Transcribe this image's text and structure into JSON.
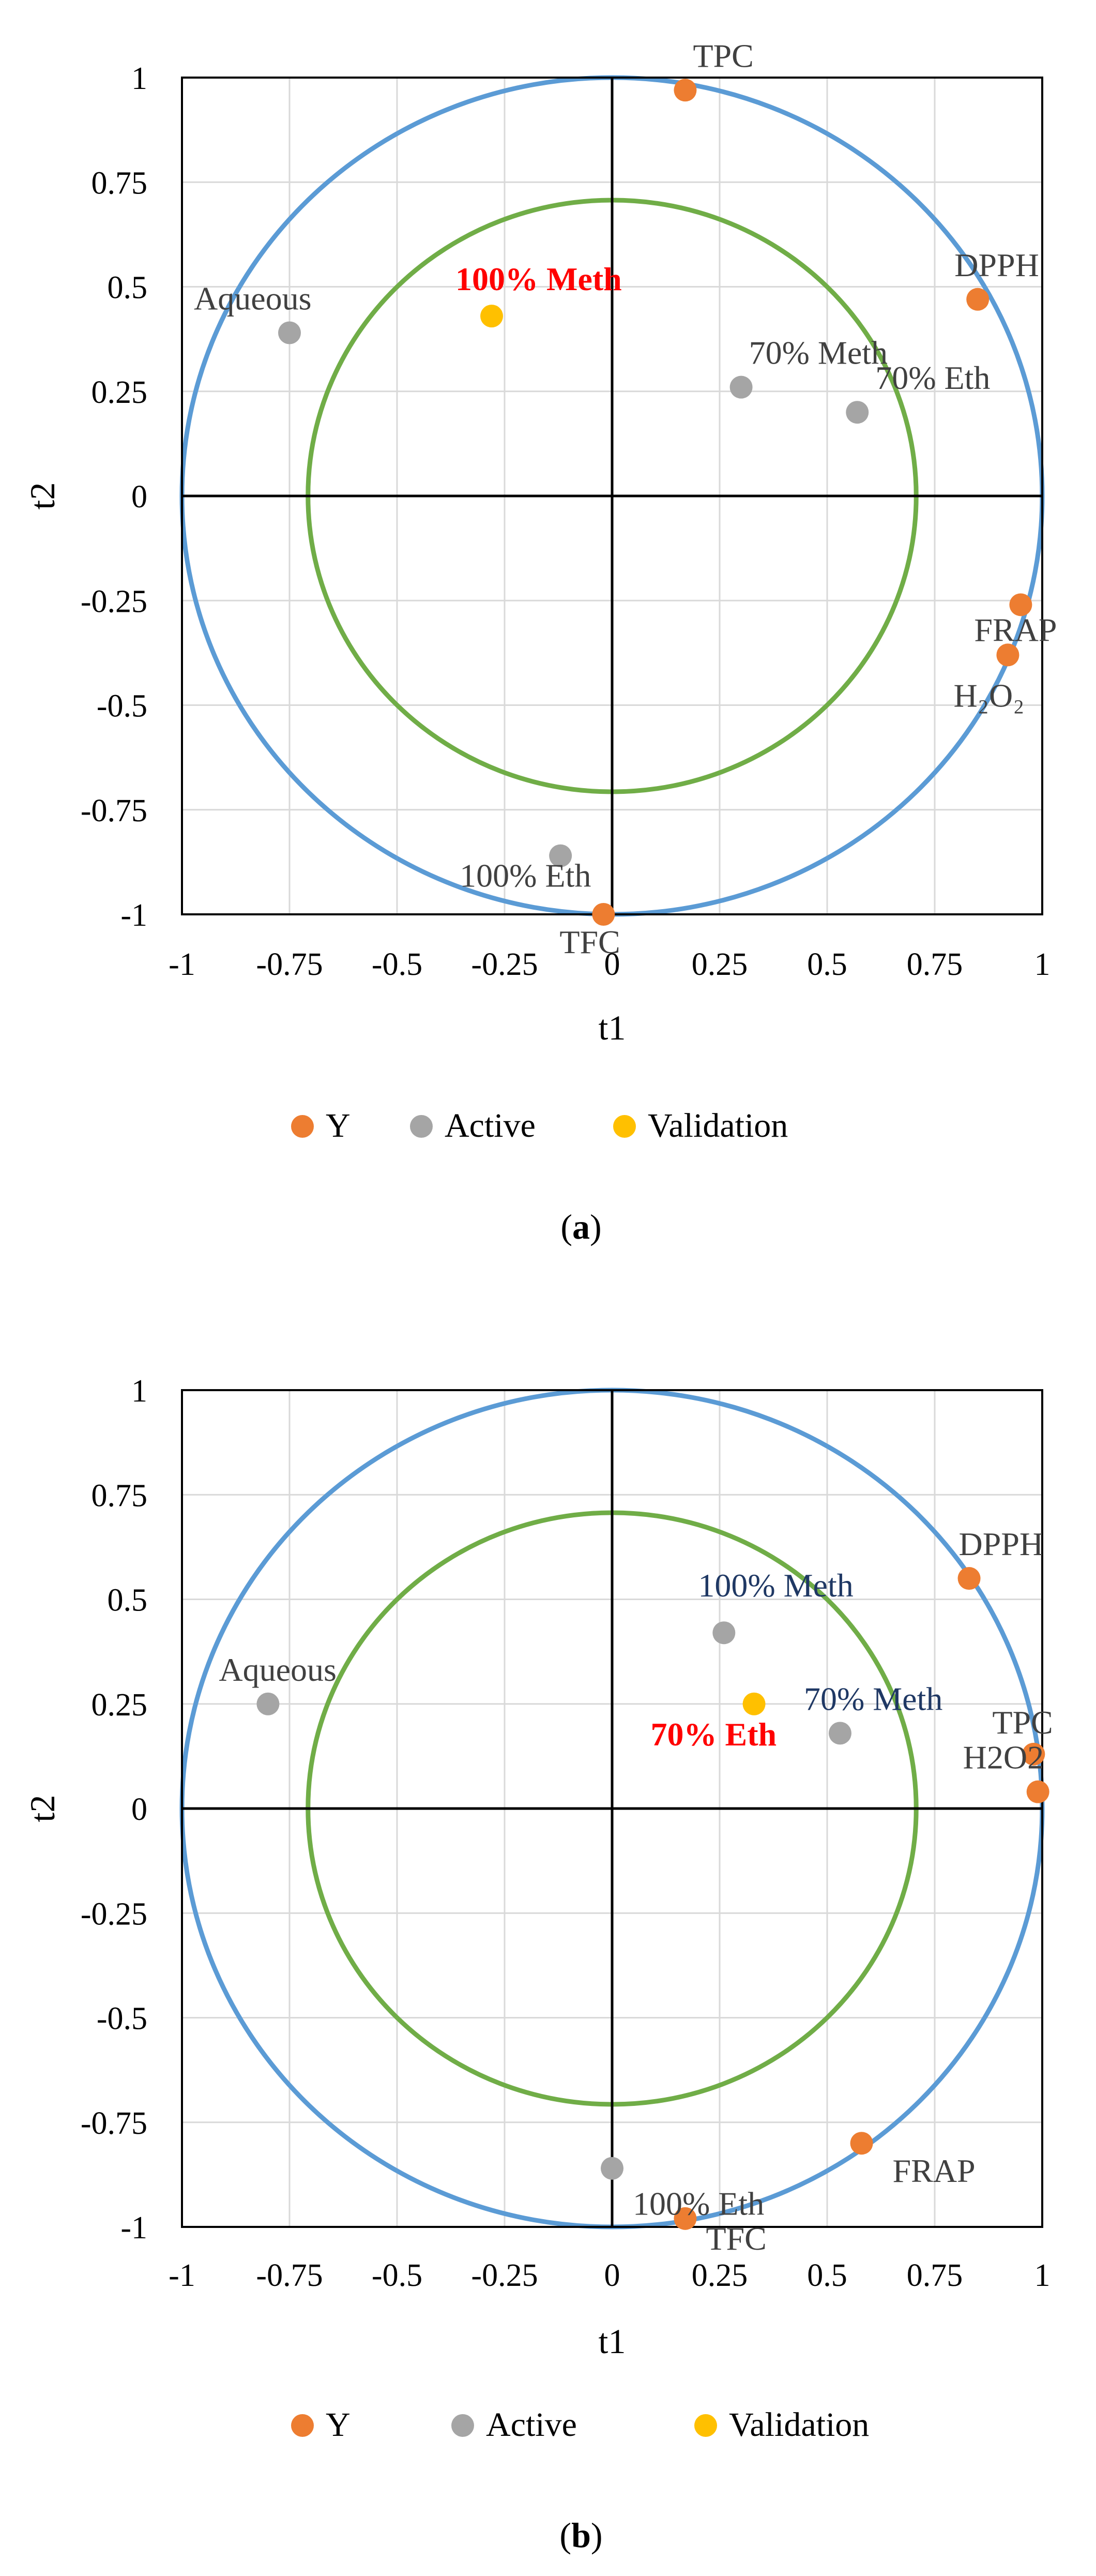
{
  "colors": {
    "grid": "#d9d9d9",
    "axis": "#000000",
    "outer_circle": "#5b9bd5",
    "inner_circle": "#70ad47",
    "y_series": "#ed7d31",
    "active_series": "#a5a5a5",
    "validation_series": "#ffc000",
    "highlight_red": "#ff0000",
    "highlight_navy": "#1f3864",
    "label": "#404040"
  },
  "chart_data": [
    {
      "type": "scatter",
      "caption_letter": "a",
      "xlabel": "t1",
      "ylabel": "t2",
      "xlim": [
        -1,
        1
      ],
      "ylim": [
        -1,
        1
      ],
      "x_ticks": [
        "-1",
        "-0.75",
        "-0.5",
        "-0.25",
        "0",
        "0.25",
        "0.5",
        "0.75",
        "1"
      ],
      "y_ticks": [
        "1",
        "0.75",
        "0.5",
        "0.25",
        "0",
        "-0.25",
        "-0.5",
        "-0.75",
        "-1"
      ],
      "grid": true,
      "circles": [
        {
          "name": "outer",
          "radius": 1.0,
          "color": "#5b9bd5"
        },
        {
          "name": "inner",
          "radius": 0.707,
          "color": "#70ad47"
        }
      ],
      "legend": [
        "Y",
        "Active",
        "Validation"
      ],
      "legend_position": "bottom",
      "series": [
        {
          "name": "Y",
          "color": "#ed7d31",
          "points": [
            {
              "label": "TPC",
              "x": 0.17,
              "y": 0.97
            },
            {
              "label": "DPPH",
              "x": 0.85,
              "y": 0.47
            },
            {
              "label": "FRAP",
              "x": 0.95,
              "y": -0.26
            },
            {
              "label": "H₂O₂",
              "x": 0.92,
              "y": -0.38
            },
            {
              "label": "TFC",
              "x": -0.02,
              "y": -1.0
            }
          ]
        },
        {
          "name": "Active",
          "color": "#a5a5a5",
          "points": [
            {
              "label": "Aqueous",
              "x": -0.75,
              "y": 0.39
            },
            {
              "label": "70% Meth",
              "x": 0.3,
              "y": 0.26
            },
            {
              "label": "70% Eth",
              "x": 0.57,
              "y": 0.2
            },
            {
              "label": "100% Eth",
              "x": -0.12,
              "y": -0.86
            }
          ]
        },
        {
          "name": "Validation",
          "color": "#ffc000",
          "points": [
            {
              "label": "100% Meth",
              "x": -0.28,
              "y": 0.43
            }
          ]
        }
      ]
    },
    {
      "type": "scatter",
      "caption_letter": "b",
      "xlabel": "t1",
      "ylabel": "t2",
      "xlim": [
        -1,
        1
      ],
      "ylim": [
        -1,
        1
      ],
      "x_ticks": [
        "-1",
        "-0.75",
        "-0.5",
        "-0.25",
        "0",
        "0.25",
        "0.5",
        "0.75",
        "1"
      ],
      "y_ticks": [
        "1",
        "0.75",
        "0.5",
        "0.25",
        "0",
        "-0.25",
        "-0.5",
        "-0.75",
        "-1"
      ],
      "grid": true,
      "circles": [
        {
          "name": "outer",
          "radius": 1.0,
          "color": "#5b9bd5"
        },
        {
          "name": "inner",
          "radius": 0.707,
          "color": "#70ad47"
        }
      ],
      "legend": [
        "Y",
        "Active",
        "Validation"
      ],
      "legend_position": "bottom",
      "series": [
        {
          "name": "Y",
          "color": "#ed7d31",
          "points": [
            {
              "label": "DPPH",
              "x": 0.83,
              "y": 0.55
            },
            {
              "label": "TPC",
              "x": 0.98,
              "y": 0.13
            },
            {
              "label": "H2O2",
              "x": 0.99,
              "y": 0.04
            },
            {
              "label": "FRAP",
              "x": 0.58,
              "y": -0.8
            },
            {
              "label": "TFC",
              "x": 0.17,
              "y": -0.98
            }
          ]
        },
        {
          "name": "Active",
          "color": "#a5a5a5",
          "points": [
            {
              "label": "Aqueous",
              "x": -0.8,
              "y": 0.25
            },
            {
              "label": "100% Meth",
              "x": 0.26,
              "y": 0.42
            },
            {
              "label": "70% Meth",
              "x": 0.53,
              "y": 0.18
            },
            {
              "label": "100% Eth",
              "x": 0.0,
              "y": -0.86
            }
          ]
        },
        {
          "name": "Validation",
          "color": "#ffc000",
          "points": [
            {
              "label": "70% Eth",
              "x": 0.33,
              "y": 0.25
            }
          ]
        }
      ]
    }
  ]
}
